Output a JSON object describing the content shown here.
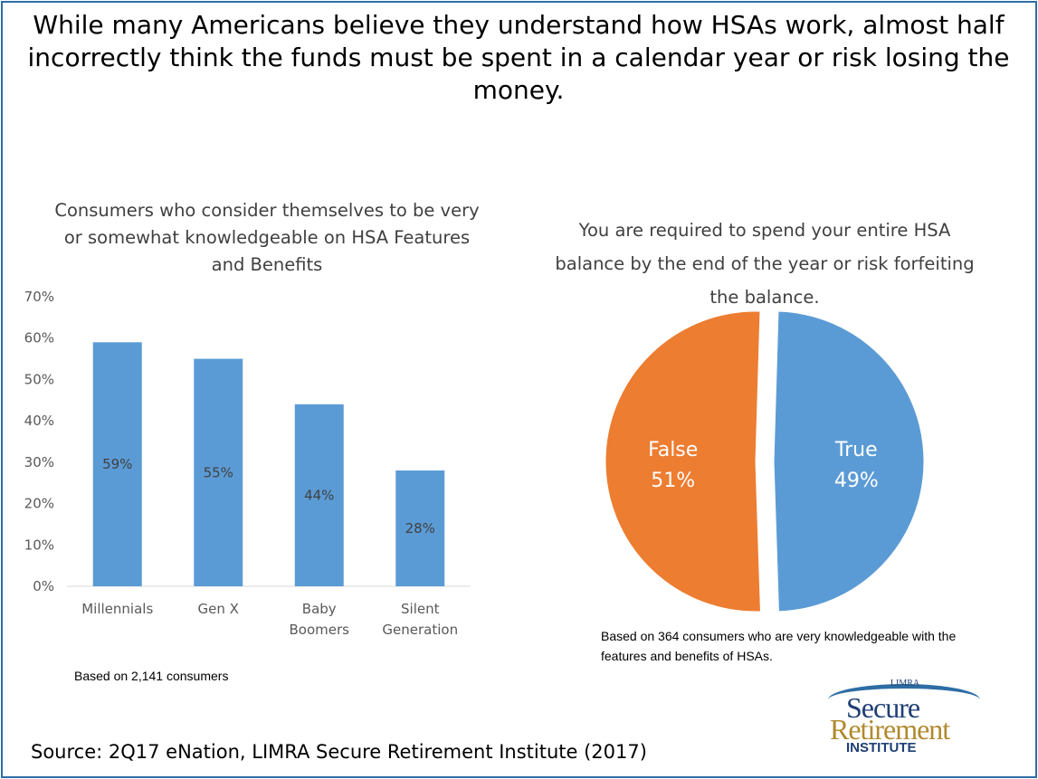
{
  "headline": "While many Americans believe they understand how HSAs work, almost half incorrectly think the funds must be spent in a calendar year or risk losing the money.",
  "chart_data": [
    {
      "type": "bar",
      "title": "Consumers who consider themselves to be very or somewhat knowledgeable on HSA Features and Benefits",
      "categories": [
        [
          "Millennials"
        ],
        [
          "Gen X"
        ],
        [
          "Baby",
          "Boomers"
        ],
        [
          "Silent",
          "Generation"
        ]
      ],
      "values": [
        59,
        55,
        44,
        28
      ],
      "value_labels": [
        "59%",
        "55%",
        "44%",
        "28%"
      ],
      "ylim": [
        0,
        70
      ],
      "yticks": [
        "0%",
        "10%",
        "20%",
        "30%",
        "40%",
        "50%",
        "60%",
        "70%"
      ],
      "grid": false,
      "color": "#5b9bd5",
      "note": "Based on 2,141 consumers"
    },
    {
      "type": "pie",
      "title": "You are required to spend your entire HSA balance by the end of the year or risk forfeiting the balance.",
      "slices": [
        {
          "label": "True",
          "value": 49,
          "value_label": "49%",
          "color": "#5b9bd5"
        },
        {
          "label": "False",
          "value": 51,
          "value_label": "51%",
          "color": "#ed7d31"
        }
      ],
      "note": "Based on 364 consumers who are very knowledgeable with the features and benefits of HSAs."
    }
  ],
  "source": "Source: 2Q17 eNation, LIMRA Secure Retirement Institute (2017)",
  "logo": {
    "limra": "LIMRA",
    "line1": "Secure",
    "line2": "Retirement",
    "line3": "INSTITUTE"
  },
  "colors": {
    "border": "#2e6da4",
    "bar": "#5b9bd5",
    "pie_false": "#ed7d31",
    "pie_true": "#5b9bd5"
  }
}
